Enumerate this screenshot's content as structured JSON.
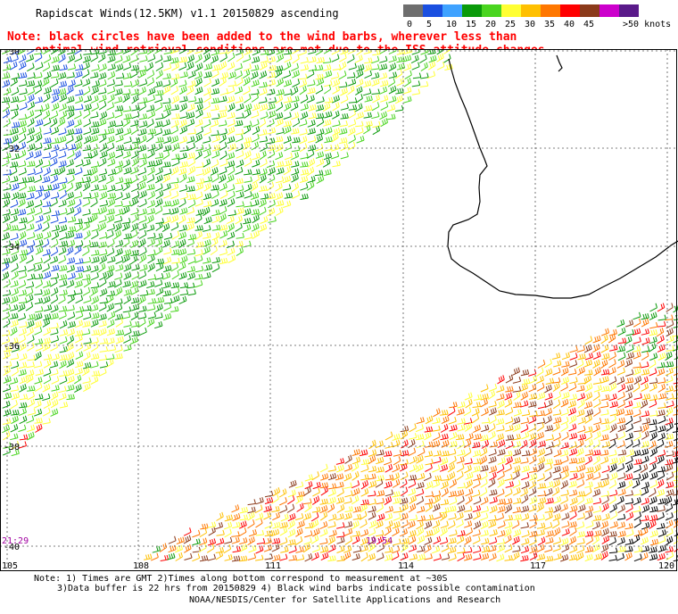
{
  "header": {
    "title": "Rapidscat Winds(12.5KM) v1.1 20150829 ascending",
    "note_line1": "Note: black circles have been added to the wind barbs, wherever less than",
    "note_line2": "    optimal wind retrieval conditions are met due to the ISS attitude changes."
  },
  "legend": {
    "units": "knots",
    "bins": [
      {
        "label": "0",
        "color": "#6e6e6e"
      },
      {
        "label": "5",
        "color": "#1a4fe0"
      },
      {
        "label": "10",
        "color": "#3fa2ff"
      },
      {
        "label": "15",
        "color": "#0a9a0a"
      },
      {
        "label": "20",
        "color": "#49d51f"
      },
      {
        "label": "25",
        "color": "#ffff33"
      },
      {
        "label": "30",
        "color": "#ffc000"
      },
      {
        "label": "35",
        "color": "#ff7700"
      },
      {
        "label": "40",
        "color": "#ff0000"
      },
      {
        "label": "45",
        "color": "#8b3a1a"
      },
      {
        "label": "",
        "color": "#cc00cc"
      },
      {
        "label": ">50 knots",
        "color": "#5a1a8a"
      }
    ]
  },
  "map": {
    "lat_labels": [
      "-30",
      "-32",
      "-34",
      "-36",
      "-38",
      "-40"
    ],
    "lon_labels": [
      "105",
      "108",
      "111",
      "114",
      "117",
      "120"
    ],
    "time_labels": [
      {
        "text": "21:29",
        "color": "#a000a0"
      },
      {
        "text": "19:54",
        "color": "#a000a0"
      }
    ],
    "region": "Southwest Australia coastline"
  },
  "footer": {
    "line1": "Note: 1) Times are GMT 2)Times along bottom correspond to measurement at ~30S",
    "line2": "3)Data buffer is 22 hrs from 20150829 4) Black wind barbs indicate possible contamination",
    "line3": "NOAA/NESDIS/Center for Satellite Applications and Research"
  }
}
